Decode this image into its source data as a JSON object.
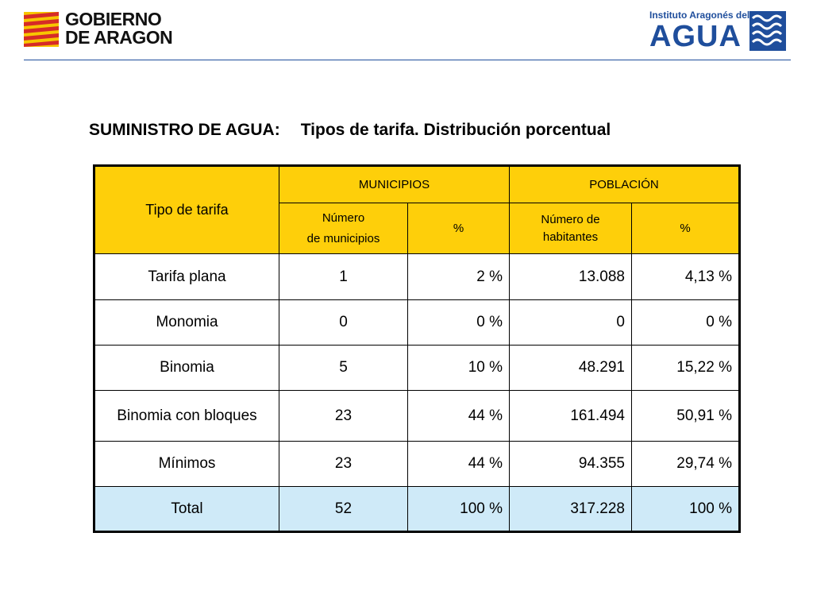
{
  "header": {
    "left_logo": {
      "line1": "GOBIERNO",
      "line2": "DE ARAGON"
    },
    "right_logo": {
      "small": "Instituto Aragonés del",
      "big": "AGUA"
    }
  },
  "title": {
    "part1": "SUMINISTRO DE AGUA:",
    "part2": "Tipos de tarifa. Distribución porcentual"
  },
  "table": {
    "header_tipo": "Tipo de tarifa",
    "header_municipios": "MUNICIPIOS",
    "header_poblacion": "POBLACIÓN",
    "sub_numero_municipios_1": "Número",
    "sub_numero_municipios_2": "de municipios",
    "sub_pct_municipios": "%",
    "sub_numero_habitantes_1": "Número de",
    "sub_numero_habitantes_2": "habitantes",
    "sub_pct_poblacion": "%",
    "rows": [
      {
        "tipo": "Tarifa plana",
        "municipios": "1",
        "pct_mun": "2 %",
        "habitantes": "13.088",
        "pct_pob": "4,13 %"
      },
      {
        "tipo": "Monomia",
        "municipios": "0",
        "pct_mun": "0 %",
        "habitantes": "0",
        "pct_pob": "0 %"
      },
      {
        "tipo": "Binomia",
        "municipios": "5",
        "pct_mun": "10 %",
        "habitantes": "48.291",
        "pct_pob": "15,22 %"
      },
      {
        "tipo": "Binomia con bloques",
        "municipios": "23",
        "pct_mun": "44 %",
        "habitantes": "161.494",
        "pct_pob": "50,91 %"
      },
      {
        "tipo": "Mínimos",
        "municipios": "23",
        "pct_mun": "44 %",
        "habitantes": "94.355",
        "pct_pob": "29,74 %"
      }
    ],
    "total": {
      "tipo": "Total",
      "municipios": "52",
      "pct_mun": "100 %",
      "habitantes": "317.228",
      "pct_pob": "100 %"
    }
  },
  "colors": {
    "header_fill": "#fecf0a",
    "total_fill": "#cfeaf8",
    "brand_blue": "#1f4e9c",
    "flag_red": "#d62b27",
    "flag_yellow": "#f7c600"
  }
}
